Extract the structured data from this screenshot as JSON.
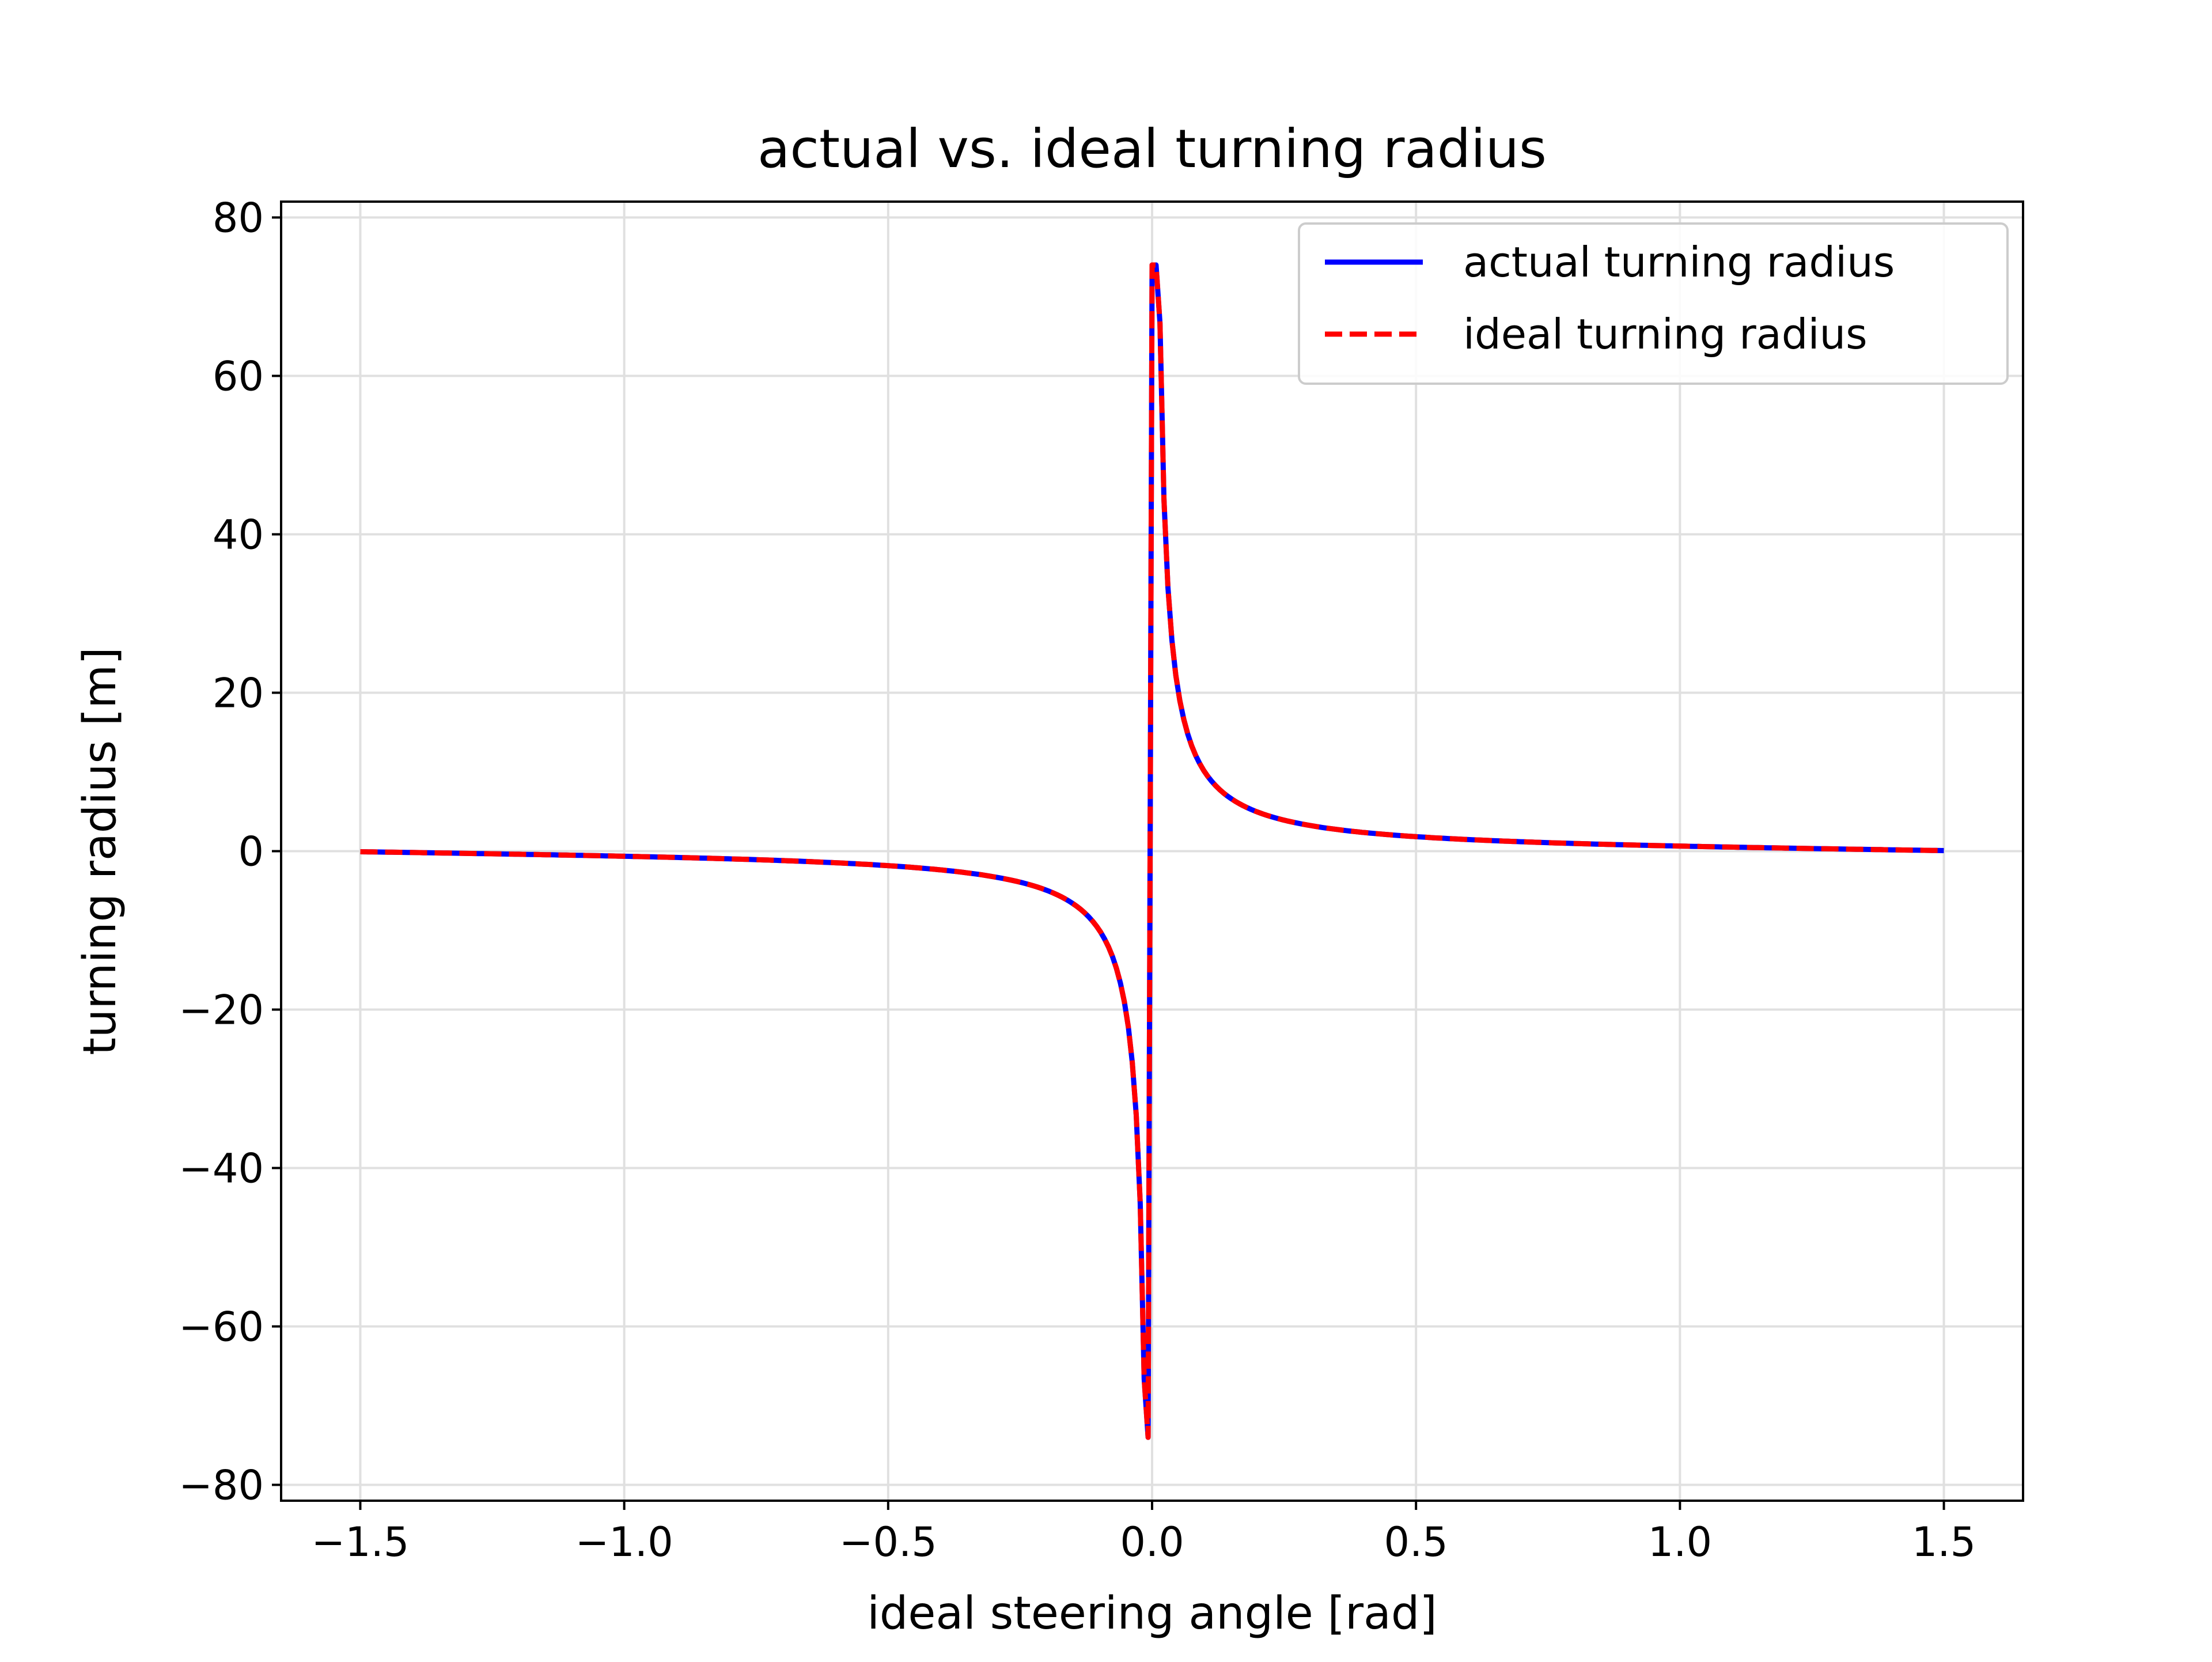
{
  "chart_data": {
    "type": "line",
    "title": "actual vs. ideal turning radius",
    "xlabel": "ideal steering angle [rad]",
    "ylabel": "turning radius [m]",
    "xlim": [
      -1.65,
      1.65
    ],
    "ylim": [
      -82,
      82
    ],
    "xticks": [
      -1.5,
      -1.0,
      -0.5,
      0.0,
      0.5,
      1.0,
      1.5
    ],
    "xtick_labels": [
      "−1.5",
      "−1.0",
      "−0.5",
      "0.0",
      "0.5",
      "1.0",
      "1.5"
    ],
    "yticks": [
      -80,
      -60,
      -40,
      -20,
      0,
      20,
      40,
      60,
      80
    ],
    "ytick_labels": [
      "−80",
      "−60",
      "−40",
      "−20",
      "0",
      "20",
      "40",
      "60",
      "80"
    ],
    "grid": true,
    "legend_position": "top-right",
    "wheelbase_m": 1.0,
    "x_range": [
      -1.5,
      1.5
    ],
    "y_extremes": [
      -74,
      74
    ],
    "series": [
      {
        "name": "actual turning radius",
        "color": "#0000ff",
        "style": "solid"
      },
      {
        "name": "ideal turning radius",
        "color": "#ff0000",
        "style": "dashed"
      }
    ]
  }
}
